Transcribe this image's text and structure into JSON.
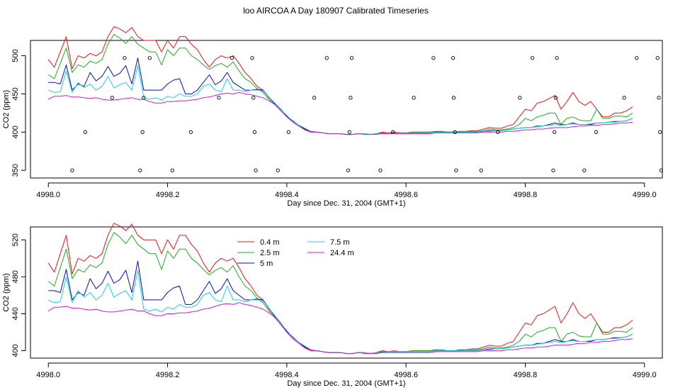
{
  "figure": {
    "title": "loo AIRCOA A  Day 180907  Calibrated Timeseries"
  },
  "series_colors": {
    "0.4 m": "#e8141b",
    "2.5 m": "#1fae1f",
    "5 m": "#0a0ab8",
    "7.5 m": "#1ad4d4",
    "24.4 m": "#d619d6"
  },
  "chart_data": [
    {
      "type": "scatter+line",
      "xlabel": "Day since Dec. 31, 2004 (GMT+1)",
      "ylabel": "CO2 (ppm)",
      "xlim": [
        4997.97,
        4999.03
      ],
      "ylim": [
        340,
        520
      ],
      "xticks": [
        4998.0,
        4998.2,
        4998.4,
        4998.6,
        4998.8,
        4999.0
      ],
      "xtick_labels": [
        "4998.0",
        "4998.2",
        "4998.4",
        "4998.6",
        "4998.8",
        "4999.0"
      ],
      "yticks": [
        350,
        400,
        450,
        500
      ],
      "ytick_labels": [
        "350",
        "400",
        "450",
        "500"
      ],
      "legend": "none",
      "grid": false,
      "points": [
        {
          "x": 4998.04,
          "y": 350
        },
        {
          "x": 4998.062,
          "y": 400
        },
        {
          "x": 4998.107,
          "y": 445
        },
        {
          "x": 4998.128,
          "y": 497
        },
        {
          "x": 4998.154,
          "y": 350
        },
        {
          "x": 4998.158,
          "y": 400
        },
        {
          "x": 4998.16,
          "y": 445
        },
        {
          "x": 4998.17,
          "y": 497
        },
        {
          "x": 4998.208,
          "y": 350
        },
        {
          "x": 4998.239,
          "y": 400
        },
        {
          "x": 4998.286,
          "y": 445
        },
        {
          "x": 4998.308,
          "y": 497
        },
        {
          "x": 4998.342,
          "y": 497
        },
        {
          "x": 4998.344,
          "y": 445
        },
        {
          "x": 4998.346,
          "y": 400
        },
        {
          "x": 4998.348,
          "y": 350
        },
        {
          "x": 4998.385,
          "y": 350
        },
        {
          "x": 4998.403,
          "y": 400
        },
        {
          "x": 4998.446,
          "y": 445
        },
        {
          "x": 4998.467,
          "y": 497
        },
        {
          "x": 4998.503,
          "y": 350
        },
        {
          "x": 4998.505,
          "y": 400
        },
        {
          "x": 4998.507,
          "y": 445
        },
        {
          "x": 4998.509,
          "y": 497
        },
        {
          "x": 4998.557,
          "y": 350
        },
        {
          "x": 4998.578,
          "y": 400
        },
        {
          "x": 4998.613,
          "y": 445
        },
        {
          "x": 4998.646,
          "y": 497
        },
        {
          "x": 4998.679,
          "y": 497
        },
        {
          "x": 4998.68,
          "y": 445
        },
        {
          "x": 4998.682,
          "y": 400
        },
        {
          "x": 4998.684,
          "y": 350
        },
        {
          "x": 4998.726,
          "y": 350
        },
        {
          "x": 4998.754,
          "y": 400
        },
        {
          "x": 4998.791,
          "y": 445
        },
        {
          "x": 4998.812,
          "y": 497
        },
        {
          "x": 4998.847,
          "y": 350
        },
        {
          "x": 4998.849,
          "y": 400
        },
        {
          "x": 4998.851,
          "y": 445
        },
        {
          "x": 4998.853,
          "y": 497
        },
        {
          "x": 4998.899,
          "y": 350
        },
        {
          "x": 4998.919,
          "y": 400
        },
        {
          "x": 4998.966,
          "y": 445
        },
        {
          "x": 4998.987,
          "y": 497
        },
        {
          "x": 4999.022,
          "y": 497
        },
        {
          "x": 4999.024,
          "y": 445
        },
        {
          "x": 4999.026,
          "y": 400
        },
        {
          "x": 4999.028,
          "y": 350
        }
      ]
    },
    {
      "type": "line",
      "xlabel": "Day since Dec. 31, 2004 (GMT+1)",
      "ylabel": "CO2 (ppm)",
      "xlim": [
        4997.97,
        4999.03
      ],
      "ylim": [
        392,
        534
      ],
      "xticks": [
        4998.0,
        4998.2,
        4998.4,
        4998.6,
        4998.8,
        4999.0
      ],
      "xtick_labels": [
        "4998.0",
        "4998.2",
        "4998.4",
        "4998.6",
        "4998.8",
        "4999.0"
      ],
      "yticks": [
        400,
        440,
        480,
        520
      ],
      "ytick_labels": [
        "400",
        "440",
        "480",
        "520"
      ],
      "legend": "top-left",
      "grid": false,
      "x": [
        4998.0,
        4998.01,
        4998.02,
        4998.03,
        4998.04,
        4998.05,
        4998.06,
        4998.07,
        4998.08,
        4998.09,
        4998.1,
        4998.11,
        4998.12,
        4998.13,
        4998.14,
        4998.15,
        4998.16,
        4998.17,
        4998.18,
        4998.19,
        4998.2,
        4998.21,
        4998.22,
        4998.23,
        4998.24,
        4998.25,
        4998.26,
        4998.27,
        4998.28,
        4998.29,
        4998.3,
        4998.31,
        4998.32,
        4998.33,
        4998.34,
        4998.35,
        4998.36,
        4998.37,
        4998.38,
        4998.39,
        4998.4,
        4998.41,
        4998.42,
        4998.43,
        4998.44,
        4998.45,
        4998.46,
        4998.47,
        4998.48,
        4998.49,
        4998.5,
        4998.51,
        4998.52,
        4998.53,
        4998.54,
        4998.55,
        4998.56,
        4998.57,
        4998.58,
        4998.59,
        4998.6,
        4998.61,
        4998.62,
        4998.63,
        4998.64,
        4998.65,
        4998.66,
        4998.67,
        4998.68,
        4998.69,
        4998.7,
        4998.71,
        4998.72,
        4998.73,
        4998.74,
        4998.75,
        4998.76,
        4998.77,
        4998.78,
        4998.79,
        4998.8,
        4998.81,
        4998.82,
        4998.83,
        4998.84,
        4998.85,
        4998.86,
        4998.87,
        4998.88,
        4998.89,
        4998.9,
        4998.91,
        4998.92,
        4998.93,
        4998.94,
        4998.95,
        4998.96,
        4998.97,
        4998.98
      ],
      "series": [
        {
          "name": "0.4 m",
          "values": [
            495,
            485,
            505,
            525,
            483,
            500,
            497,
            503,
            500,
            505,
            525,
            538,
            535,
            530,
            537,
            525,
            520,
            520,
            520,
            505,
            520,
            510,
            525,
            525,
            515,
            508,
            495,
            485,
            495,
            500,
            497,
            500,
            490,
            478,
            470,
            460,
            455,
            445,
            438,
            430,
            421,
            415,
            409,
            405,
            401,
            400,
            399,
            398,
            398,
            398,
            397,
            397,
            398,
            398,
            397,
            398,
            400,
            399,
            400,
            399,
            399,
            400,
            400,
            400,
            400,
            401,
            401,
            400,
            400,
            401,
            401,
            402,
            402,
            404,
            406,
            405,
            405,
            408,
            410,
            420,
            430,
            428,
            438,
            440,
            444,
            448,
            430,
            440,
            452,
            440,
            435,
            440,
            430,
            420,
            420,
            425,
            425,
            428,
            433
          ]
        },
        {
          "name": "2.5 m",
          "values": [
            475,
            470,
            490,
            510,
            478,
            488,
            485,
            493,
            490,
            495,
            515,
            528,
            523,
            516,
            525,
            515,
            510,
            505,
            505,
            488,
            508,
            500,
            510,
            510,
            500,
            495,
            488,
            482,
            487,
            490,
            485,
            492,
            480,
            470,
            465,
            457,
            452,
            443,
            437,
            430,
            421,
            414,
            409,
            405,
            400,
            400,
            399,
            398,
            398,
            398,
            397,
            397,
            398,
            398,
            397,
            398,
            399,
            399,
            399,
            399,
            399,
            400,
            400,
            400,
            400,
            400,
            400,
            400,
            400,
            400,
            401,
            401,
            401,
            402,
            404,
            403,
            403,
            404,
            406,
            410,
            418,
            415,
            420,
            422,
            425,
            425,
            410,
            418,
            420,
            416,
            415,
            415,
            430,
            418,
            418,
            421,
            421,
            420,
            425
          ]
        },
        {
          "name": "5 m",
          "values": [
            465,
            465,
            463,
            488,
            455,
            463,
            460,
            478,
            467,
            473,
            486,
            473,
            477,
            487,
            463,
            497,
            455,
            455,
            455,
            455,
            463,
            468,
            470,
            450,
            450,
            455,
            465,
            475,
            462,
            467,
            478,
            465,
            460,
            455,
            455,
            456,
            455,
            446,
            437,
            429,
            421,
            414,
            409,
            404,
            400,
            400,
            399,
            398,
            398,
            398,
            397,
            397,
            398,
            398,
            397,
            398,
            398,
            399,
            399,
            399,
            399,
            399,
            399,
            399,
            399,
            400,
            400,
            400,
            400,
            400,
            400,
            400,
            400,
            401,
            402,
            402,
            402,
            403,
            404,
            405,
            406,
            406,
            408,
            408,
            410,
            412,
            410,
            410,
            412,
            410,
            410,
            410,
            412,
            412,
            413,
            414,
            414,
            415,
            418
          ]
        },
        {
          "name": "7.5 m",
          "values": [
            455,
            452,
            453,
            480,
            452,
            465,
            458,
            463,
            455,
            460,
            473,
            458,
            462,
            465,
            455,
            487,
            445,
            443,
            445,
            442,
            447,
            445,
            450,
            447,
            447,
            450,
            460,
            463,
            455,
            453,
            470,
            455,
            455,
            453,
            455,
            455,
            454,
            446,
            438,
            429,
            422,
            414,
            409,
            403,
            400,
            400,
            399,
            398,
            398,
            398,
            397,
            397,
            398,
            398,
            397,
            398,
            398,
            399,
            399,
            399,
            399,
            399,
            399,
            399,
            399,
            400,
            400,
            400,
            400,
            400,
            400,
            400,
            400,
            401,
            401,
            402,
            402,
            403,
            404,
            405,
            406,
            406,
            407,
            408,
            409,
            410,
            409,
            410,
            411,
            410,
            410,
            411,
            412,
            412,
            413,
            413,
            414,
            415,
            418
          ]
        },
        {
          "name": "24.4 m",
          "values": [
            443,
            447,
            447,
            448,
            446,
            446,
            445,
            444,
            445,
            443,
            442,
            442,
            443,
            444,
            445,
            443,
            443,
            440,
            438,
            438,
            440,
            440,
            441,
            441,
            442,
            443,
            445,
            446,
            448,
            450,
            451,
            450,
            452,
            450,
            449,
            447,
            445,
            441,
            436,
            428,
            420,
            413,
            408,
            403,
            400,
            400,
            399,
            398,
            398,
            398,
            397,
            397,
            398,
            397,
            397,
            397,
            398,
            398,
            398,
            398,
            398,
            398,
            398,
            398,
            398,
            399,
            399,
            399,
            399,
            399,
            399,
            399,
            399,
            400,
            400,
            400,
            400,
            401,
            401,
            402,
            403,
            403,
            404,
            404,
            405,
            406,
            406,
            406,
            407,
            408,
            408,
            409,
            409,
            410,
            410,
            411,
            412,
            412,
            413
          ]
        }
      ]
    }
  ]
}
